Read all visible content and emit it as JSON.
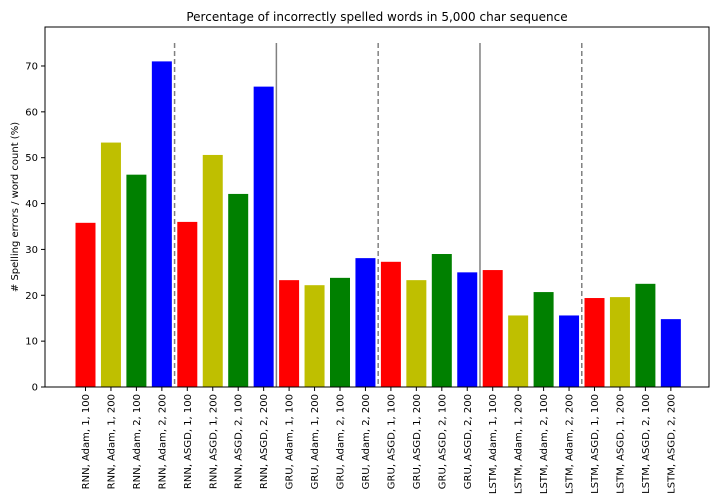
{
  "chart_data": {
    "type": "bar",
    "title": "Percentage of incorrectly spelled words in 5,000 char sequence",
    "xlabel": "",
    "ylabel": "# Spelling errors / word count (%)",
    "ylim": [
      0,
      78.5
    ],
    "yticks": [
      0,
      10,
      20,
      30,
      40,
      50,
      60,
      70
    ],
    "grid": false,
    "categories": [
      "RNN, Adam, 1, 100",
      "RNN, Adam, 1, 200",
      "RNN, Adam, 2, 100",
      "RNN, Adam, 2, 200",
      "RNN, ASGD, 1, 100",
      "RNN, ASGD, 1, 200",
      "RNN, ASGD, 2, 100",
      "RNN, ASGD, 2, 200",
      "GRU, Adam, 1, 100",
      "GRU, Adam, 1, 200",
      "GRU, Adam, 2, 100",
      "GRU, Adam, 2, 200",
      "GRU, ASGD, 1, 100",
      "GRU, ASGD, 1, 200",
      "GRU, ASGD, 2, 100",
      "GRU, ASGD, 2, 200",
      "LSTM, Adam, 1, 100",
      "LSTM, Adam, 1, 200",
      "LSTM, Adam, 2, 100",
      "LSTM, Adam, 2, 200",
      "LSTM, ASGD, 1, 100",
      "LSTM, ASGD, 1, 200",
      "LSTM, ASGD, 2, 100",
      "LSTM, ASGD, 2, 200"
    ],
    "values": [
      35.8,
      53.3,
      46.3,
      71.0,
      36.0,
      50.6,
      42.1,
      65.5,
      23.3,
      22.2,
      23.8,
      28.1,
      27.3,
      23.3,
      29.0,
      25.0,
      25.5,
      15.6,
      20.7,
      15.6,
      19.4,
      19.6,
      22.5,
      14.8
    ],
    "bar_colors": [
      "#ff0000",
      "#bfbf00",
      "#008000",
      "#0000ff",
      "#ff0000",
      "#bfbf00",
      "#008000",
      "#0000ff",
      "#ff0000",
      "#bfbf00",
      "#008000",
      "#0000ff",
      "#ff0000",
      "#bfbf00",
      "#008000",
      "#0000ff",
      "#ff0000",
      "#bfbf00",
      "#008000",
      "#0000ff",
      "#ff0000",
      "#bfbf00",
      "#008000",
      "#0000ff"
    ],
    "separators": [
      {
        "after_index": 3,
        "style": "dashed"
      },
      {
        "after_index": 7,
        "style": "solid"
      },
      {
        "after_index": 11,
        "style": "dashed"
      },
      {
        "after_index": 15,
        "style": "solid"
      },
      {
        "after_index": 19,
        "style": "dashed"
      }
    ],
    "separator_color": "#808080",
    "separator_top_value": 75
  }
}
